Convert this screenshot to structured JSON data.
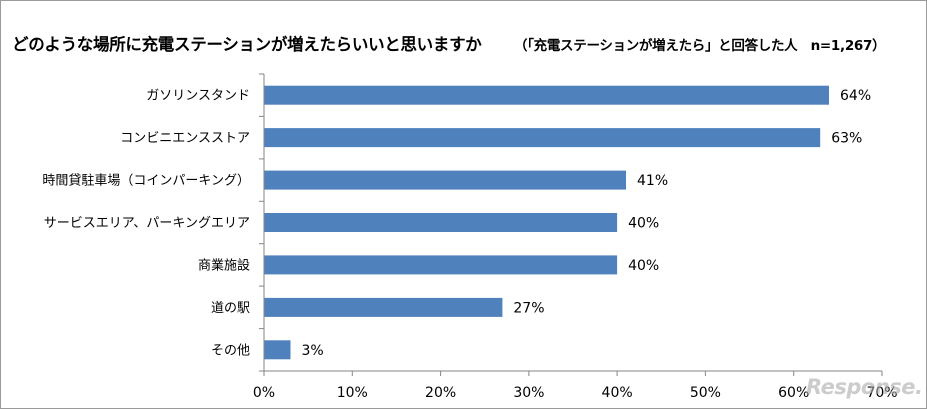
{
  "heading": {
    "title": "どのような場所に充電ステーションが増えたらいいと思いますか",
    "subtitle": "（「充電ステーションが増えたら」と回答した人　n=1,267）"
  },
  "colors": {
    "bar": "#4f81bd",
    "axis": "#868686"
  },
  "chart_data": {
    "type": "bar",
    "orientation": "horizontal",
    "categories": [
      "ガソリンスタンド",
      "コンビニエンスストア",
      "時間貸駐車場（コインパーキング）",
      "サービスエリア、パーキングエリア",
      "商業施設",
      "道の駅",
      "その他"
    ],
    "values": [
      64,
      63,
      41,
      40,
      40,
      27,
      3
    ],
    "value_labels": [
      "64%",
      "63%",
      "41%",
      "40%",
      "40%",
      "27%",
      "3%"
    ],
    "xlim": [
      0,
      70
    ],
    "xticks": [
      "0%",
      "10%",
      "20%",
      "30%",
      "40%",
      "50%",
      "60%",
      "70%"
    ],
    "xtick_values": [
      0,
      10,
      20,
      30,
      40,
      50,
      60,
      70
    ],
    "grid": false,
    "legend": "none"
  },
  "watermark": "Response."
}
